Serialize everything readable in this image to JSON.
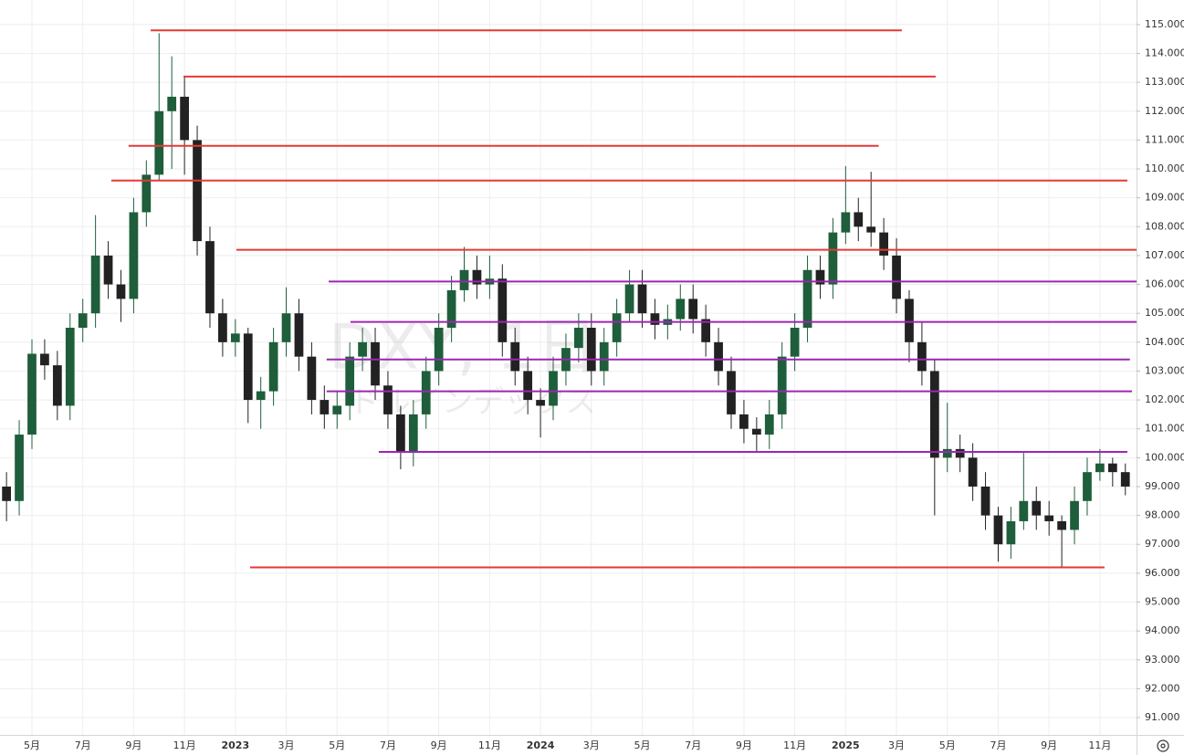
{
  "chart_data": {
    "type": "candlestick",
    "watermark": {
      "symbol": "DXY, 1日",
      "name": "ドルインデックス"
    },
    "x": [
      3,
      3.5,
      4,
      4.5,
      5,
      5.5,
      6,
      6.5,
      7,
      7.5,
      8,
      8.5,
      9,
      9.5,
      10,
      10.5,
      11,
      11.5,
      12,
      12.5,
      13,
      13.5,
      14,
      14.5,
      15,
      15.5,
      16,
      16.5,
      17,
      17.5,
      18,
      18.5,
      19,
      19.5,
      20,
      20.5,
      21,
      21.5,
      22,
      22.5,
      23,
      23.5,
      24,
      24.5,
      25,
      25.5,
      26,
      26.5,
      27,
      27.5,
      28,
      28.5,
      29,
      29.5,
      30,
      30.5,
      31,
      31.5,
      32,
      32.5,
      33,
      33.5,
      34,
      34.5,
      35,
      35.5,
      36,
      36.5,
      37,
      37.5,
      38,
      38.5,
      39,
      39.5,
      40,
      40.5,
      41,
      41.5,
      42,
      42.5,
      43,
      43.5,
      44,
      44.5,
      45,
      45.5,
      46,
      46.5,
      47
    ],
    "open": [
      99.0,
      98.5,
      100.8,
      103.6,
      103.2,
      101.8,
      104.5,
      105.0,
      107.0,
      106.0,
      105.5,
      108.5,
      109.8,
      112.0,
      112.5,
      111.0,
      107.5,
      105.0,
      104.0,
      104.3,
      102.0,
      102.3,
      104.0,
      105.0,
      103.5,
      102.0,
      101.5,
      101.8,
      103.5,
      104.0,
      102.5,
      101.5,
      100.2,
      101.5,
      103.0,
      104.5,
      105.8,
      106.5,
      106.0,
      106.2,
      104.0,
      103.0,
      102.0,
      101.8,
      103.0,
      103.8,
      104.5,
      103.0,
      104.0,
      105.0,
      106.0,
      105.0,
      104.6,
      104.8,
      105.5,
      104.8,
      104.0,
      103.0,
      101.5,
      101.0,
      100.8,
      101.5,
      103.5,
      104.5,
      106.5,
      106.0,
      107.8,
      108.5,
      108.0,
      107.8,
      107.0,
      105.5,
      104.0,
      103.0,
      100.0,
      100.3,
      100.0,
      99.0,
      98.0,
      97.0,
      97.8,
      98.5,
      98.0,
      97.8,
      97.5,
      98.5,
      99.5,
      99.8,
      99.5
    ],
    "high": [
      99.5,
      101.3,
      104.1,
      104.1,
      103.7,
      105.0,
      105.5,
      108.4,
      107.5,
      106.5,
      109.0,
      110.3,
      114.7,
      113.9,
      113.2,
      111.5,
      108.0,
      105.5,
      104.8,
      104.5,
      102.8,
      104.5,
      105.9,
      105.5,
      104.0,
      102.5,
      102.3,
      104.0,
      104.5,
      104.5,
      103.0,
      101.8,
      102.0,
      103.5,
      105.0,
      106.3,
      107.3,
      107.0,
      107.0,
      106.7,
      104.5,
      103.5,
      102.4,
      103.5,
      104.3,
      105.0,
      105.0,
      104.5,
      105.5,
      106.5,
      106.5,
      105.5,
      105.3,
      106.0,
      106.0,
      105.3,
      104.5,
      103.5,
      102.0,
      101.4,
      102.0,
      104.0,
      105.0,
      107.0,
      107.0,
      108.3,
      110.1,
      109.0,
      109.9,
      108.3,
      107.6,
      105.8,
      104.7,
      103.4,
      101.9,
      100.8,
      100.5,
      99.5,
      98.3,
      98.3,
      100.2,
      99.0,
      98.5,
      98.0,
      99.0,
      100.0,
      100.3,
      100.0,
      99.8
    ],
    "low": [
      97.8,
      98.0,
      100.3,
      102.7,
      101.3,
      101.3,
      104.0,
      104.5,
      105.5,
      104.7,
      105.0,
      108.0,
      109.6,
      110.0,
      109.8,
      107.0,
      104.5,
      103.5,
      103.5,
      101.2,
      101.0,
      101.8,
      103.5,
      103.0,
      101.5,
      101.0,
      101.0,
      101.3,
      103.0,
      102.0,
      101.0,
      99.6,
      99.7,
      101.0,
      102.5,
      104.0,
      105.4,
      105.5,
      105.5,
      103.5,
      102.5,
      101.5,
      100.7,
      101.3,
      102.5,
      103.3,
      102.5,
      102.5,
      103.5,
      104.7,
      104.5,
      104.1,
      104.1,
      104.4,
      104.3,
      103.5,
      102.5,
      101.0,
      100.5,
      100.2,
      100.3,
      101.0,
      103.0,
      104.0,
      105.5,
      105.5,
      107.4,
      107.5,
      107.3,
      106.5,
      105.0,
      103.3,
      102.5,
      98.0,
      99.5,
      99.5,
      98.5,
      97.5,
      96.4,
      96.5,
      97.5,
      97.5,
      97.3,
      96.2,
      97.0,
      98.0,
      99.2,
      99.0,
      98.7
    ],
    "close": [
      98.5,
      100.8,
      103.6,
      103.2,
      101.8,
      104.5,
      105.0,
      107.0,
      106.0,
      105.5,
      108.5,
      109.8,
      112.0,
      112.5,
      111.0,
      107.5,
      105.0,
      104.0,
      104.3,
      102.0,
      102.3,
      104.0,
      105.0,
      103.5,
      102.0,
      101.5,
      101.8,
      103.5,
      104.0,
      102.5,
      101.5,
      100.2,
      101.5,
      103.0,
      104.5,
      105.8,
      106.5,
      106.0,
      106.2,
      104.0,
      103.0,
      102.0,
      101.8,
      103.0,
      103.8,
      104.5,
      103.0,
      104.0,
      105.0,
      106.0,
      105.0,
      104.6,
      104.8,
      105.5,
      104.8,
      104.0,
      103.0,
      101.5,
      101.0,
      100.8,
      101.5,
      103.5,
      104.5,
      106.5,
      106.0,
      107.8,
      108.5,
      108.0,
      107.8,
      107.0,
      105.5,
      104.0,
      103.0,
      100.0,
      100.3,
      100.0,
      99.0,
      98.0,
      97.0,
      97.8,
      98.5,
      98.0,
      97.8,
      97.5,
      98.5,
      99.5,
      99.8,
      99.5,
      99.0
    ],
    "up_color": "#1e5e3a",
    "down_color": "#222222",
    "levels": [
      {
        "value": 114.8,
        "x": [
          8.67,
          38.21
        ],
        "color": "#e53935"
      },
      {
        "value": 113.2,
        "x": [
          9.96,
          39.54
        ],
        "color": "#e53935"
      },
      {
        "value": 110.8,
        "x": [
          7.8,
          37.3
        ],
        "color": "#e53935"
      },
      {
        "value": 109.6,
        "x": [
          7.12,
          47.08
        ],
        "color": "#e53935"
      },
      {
        "value": 107.2,
        "x": [
          12.04,
          47.44
        ],
        "color": "#e53935"
      },
      {
        "value": 106.1,
        "x": [
          15.67,
          47.44
        ],
        "color": "#9c27b0"
      },
      {
        "value": 104.7,
        "x": [
          16.53,
          47.44
        ],
        "color": "#9c27b0"
      },
      {
        "value": 103.4,
        "x": [
          15.59,
          47.18
        ],
        "color": "#9c27b0"
      },
      {
        "value": 102.3,
        "x": [
          15.59,
          47.26
        ],
        "color": "#9c27b0"
      },
      {
        "value": 100.2,
        "x": [
          17.64,
          47.08
        ],
        "color": "#9c27b0"
      },
      {
        "value": 96.2,
        "x": [
          12.58,
          46.18
        ],
        "color": "#e53935"
      }
    ],
    "xlim": [
      2.744,
      47.44
    ],
    "ylim": [
      90.4,
      115.85
    ],
    "xticks": [
      {
        "value": 4,
        "label": "5月"
      },
      {
        "value": 6,
        "label": "7月"
      },
      {
        "value": 8,
        "label": "9月"
      },
      {
        "value": 10,
        "label": "11月"
      },
      {
        "value": 12,
        "label": "2023",
        "bold": true
      },
      {
        "value": 14,
        "label": "3月"
      },
      {
        "value": 16,
        "label": "5月"
      },
      {
        "value": 18,
        "label": "7月"
      },
      {
        "value": 20,
        "label": "9月"
      },
      {
        "value": 22,
        "label": "11月"
      },
      {
        "value": 24,
        "label": "2024",
        "bold": true
      },
      {
        "value": 26,
        "label": "3月"
      },
      {
        "value": 28,
        "label": "5月"
      },
      {
        "value": 30,
        "label": "7月"
      },
      {
        "value": 32,
        "label": "9月"
      },
      {
        "value": 34,
        "label": "11月"
      },
      {
        "value": 36,
        "label": "2025",
        "bold": true
      },
      {
        "value": 38,
        "label": "3月"
      },
      {
        "value": 40,
        "label": "5月"
      },
      {
        "value": 42,
        "label": "7月"
      },
      {
        "value": 44,
        "label": "9月"
      },
      {
        "value": 46,
        "label": "11月"
      }
    ],
    "yticks": [
      {
        "value": 91,
        "label": "91.000"
      },
      {
        "value": 92,
        "label": "92.000"
      },
      {
        "value": 93,
        "label": "93.000"
      },
      {
        "value": 94,
        "label": "94.000"
      },
      {
        "value": 95,
        "label": "95.000"
      },
      {
        "value": 96,
        "label": "96.000"
      },
      {
        "value": 97,
        "label": "97.000"
      },
      {
        "value": 98,
        "label": "98.000"
      },
      {
        "value": 99,
        "label": "99.000"
      },
      {
        "value": 100,
        "label": "100.000"
      },
      {
        "value": 101,
        "label": "101.000"
      },
      {
        "value": 102,
        "label": "102.000"
      },
      {
        "value": 103,
        "label": "103.000"
      },
      {
        "value": 104,
        "label": "104.000"
      },
      {
        "value": 105,
        "label": "105.000"
      },
      {
        "value": 106,
        "label": "106.000"
      },
      {
        "value": 107,
        "label": "107.000"
      },
      {
        "value": 108,
        "label": "108.000"
      },
      {
        "value": 109,
        "label": "109.000"
      },
      {
        "value": 110,
        "label": "110.000"
      },
      {
        "value": 111,
        "label": "111.000"
      },
      {
        "value": 112,
        "label": "112.000"
      },
      {
        "value": 113,
        "label": "113.000"
      },
      {
        "value": 114,
        "label": "114.000"
      },
      {
        "value": 115,
        "label": "115.000"
      }
    ],
    "grid": true
  }
}
